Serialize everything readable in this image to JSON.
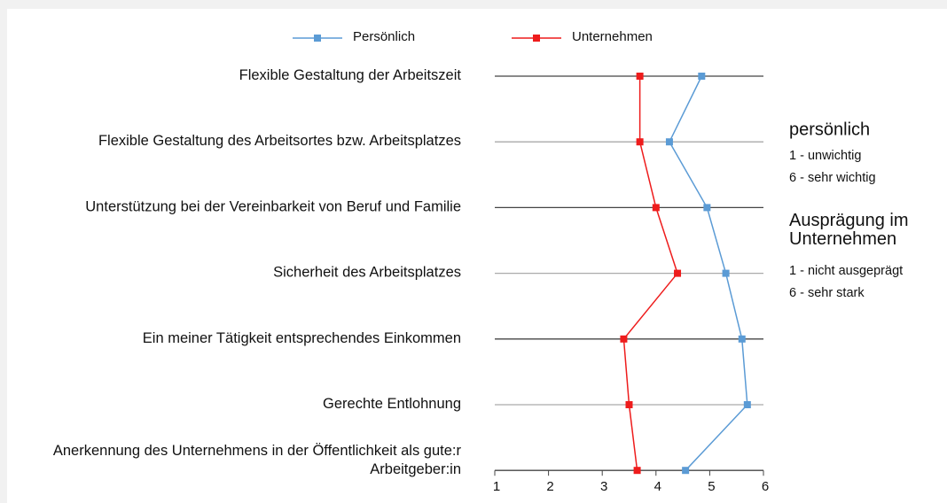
{
  "chart_data": {
    "type": "line",
    "orientation": "horizontal",
    "categories": [
      "Flexible Gestaltung der Arbeitszeit",
      "Flexible Gestaltung des Arbeitsortes bzw. Arbeitsplatzes",
      "Unterstützung bei der Vereinbarkeit von Beruf und Familie",
      "Sicherheit des Arbeitsplatzes",
      "Ein meiner Tätigkeit entsprechendes Einkommen",
      "Gerechte Entlohnung",
      "Anerkennung des Unternehmens in der Öffentlichkeit als gute:r Arbeitgeber:in"
    ],
    "series": [
      {
        "name": "Persönlich",
        "color": "#5b9bd5",
        "values": [
          4.85,
          4.25,
          4.95,
          5.3,
          5.6,
          5.7,
          4.55
        ]
      },
      {
        "name": "Unternehmen",
        "color": "#ee1c1c",
        "values": [
          3.7,
          3.7,
          4.0,
          4.4,
          3.4,
          3.5,
          3.65
        ]
      }
    ],
    "xlim": [
      1,
      6
    ],
    "xticks": [
      1,
      2,
      3,
      4,
      5,
      6
    ],
    "legend": "top",
    "annotations": [
      "persönlich",
      "1 - unwichtig",
      "6 - sehr wichtig",
      "Ausprägung im Unternehmen",
      "1 - nicht ausgeprägt",
      "6 - sehr stark"
    ]
  }
}
